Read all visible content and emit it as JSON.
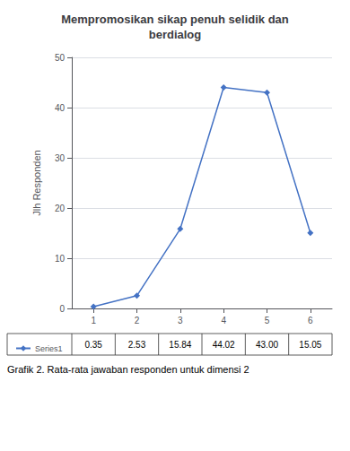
{
  "chart_data": {
    "type": "line",
    "title": "Mempromosikan sikap penuh selidik dan\nberdialog",
    "ylabel": "Jlh Responden",
    "caption": "Grafik 2. Rata-rata jawaban responden untuk dimensi 2",
    "x": [
      1,
      2,
      3,
      4,
      5,
      6
    ],
    "xlim": [
      0.5,
      6.5
    ],
    "xticks": [
      1,
      2,
      3,
      4,
      5,
      6
    ],
    "ylim": [
      0,
      50
    ],
    "yticks": [
      0,
      10,
      20,
      30,
      40,
      50
    ],
    "grid": true,
    "series": [
      {
        "name": "Series1",
        "color": "#4472C4",
        "marker": "diamond",
        "values": [
          0.35,
          2.53,
          15.84,
          44.02,
          43.0,
          15.05
        ],
        "value_labels": [
          "0.35",
          "2.53",
          "15.84",
          "44.02",
          "43.00",
          "15.05"
        ]
      }
    ]
  }
}
